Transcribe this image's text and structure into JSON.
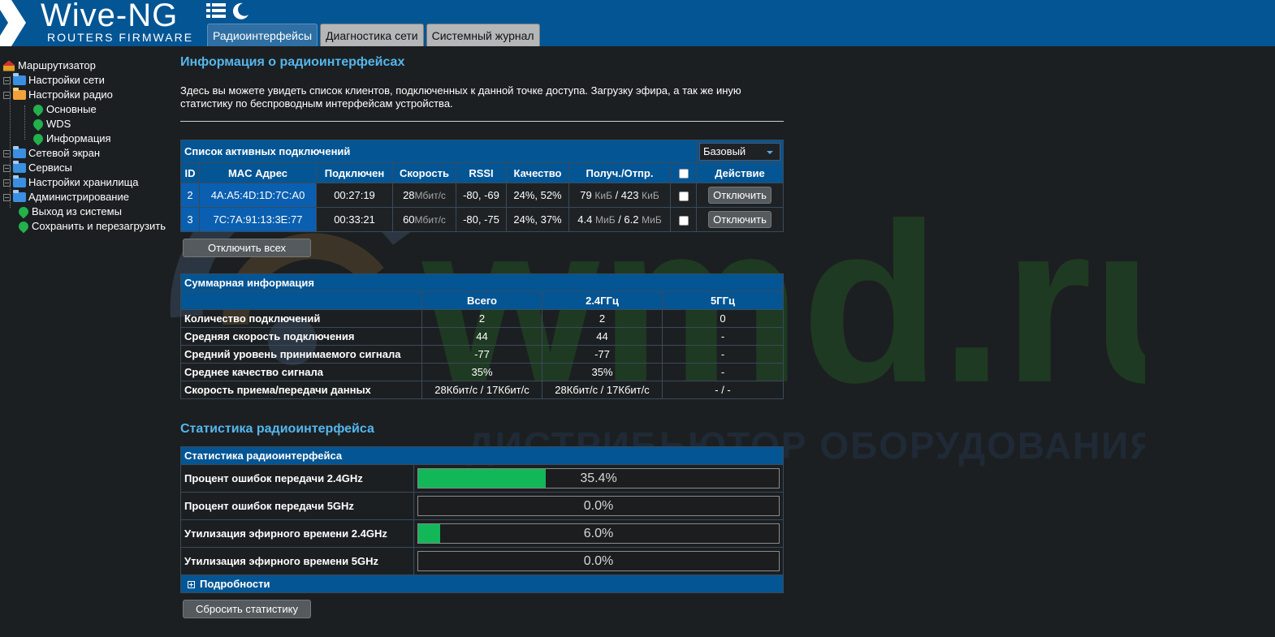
{
  "header": {
    "logo_title": "Wive-NG",
    "logo_subtitle": "ROUTERS FIRMWARE",
    "tabs": [
      {
        "label": "Радиоинтерфейсы",
        "active": true
      },
      {
        "label": "Диагностика сети",
        "active": false
      },
      {
        "label": "Системный журнал",
        "active": false
      }
    ]
  },
  "sidebar": {
    "root": "Маршрутизатор",
    "items": [
      {
        "label": "Настройки сети"
      },
      {
        "label": "Настройки радио"
      },
      {
        "label": "Основные"
      },
      {
        "label": "WDS"
      },
      {
        "label": "Информация"
      },
      {
        "label": "Сетевой экран"
      },
      {
        "label": "Сервисы"
      },
      {
        "label": "Настройки хранилища"
      },
      {
        "label": "Администрирование"
      },
      {
        "label": "Выход из системы"
      },
      {
        "label": "Сохранить и перезагрузить"
      }
    ]
  },
  "main": {
    "title": "Информация о радиоинтерфейсах",
    "description": "Здесь вы можете увидеть список клиентов, подключенных к данной точке доступа. Загрузку эфира, а так же иную статистику по беспроводным интерфейсам устройства."
  },
  "clients": {
    "title": "Список активных подключений",
    "mode_select": "Базовый",
    "columns": [
      "ID",
      "MAC Адрес",
      "Подключен",
      "Скорость",
      "RSSI",
      "Качество",
      "Получ./Отпр.",
      "",
      "Действие"
    ],
    "rows": [
      {
        "id": "2",
        "mac": "4A:A5:4D:1D:7C:A0",
        "connected": "00:27:19",
        "speed": "28",
        "speed_unit": "Мбит/с",
        "rssi": "-80, -69",
        "quality": "24%, 52%",
        "rx": "79",
        "rx_unit": "КиБ",
        "sep": " / ",
        "tx": "423",
        "tx_unit": "КиБ",
        "action": "Отключить"
      },
      {
        "id": "3",
        "mac": "7C:7A:91:13:3E:77",
        "connected": "00:33:21",
        "speed": "60",
        "speed_unit": "Мбит/с",
        "rssi": "-80, -75",
        "quality": "24%, 37%",
        "rx": "4.4",
        "rx_unit": "МиБ",
        "sep": " / ",
        "tx": "6.2",
        "tx_unit": "МиБ",
        "action": "Отключить"
      }
    ],
    "disconnect_all": "Отключить всех"
  },
  "summary": {
    "title": "Суммарная информация",
    "columns": [
      "Всего",
      "2.4ГГц",
      "5ГГц"
    ],
    "rows": [
      {
        "label": "Количество подключений",
        "total": "2",
        "g24": "2",
        "g5": "0"
      },
      {
        "label": "Средняя скорость подключения",
        "total": "44",
        "g24": "44",
        "g5": "-"
      },
      {
        "label": "Средний уровень принимаемого сигнала",
        "total": "-77",
        "g24": "-77",
        "g5": "-"
      },
      {
        "label": "Среднее качество сигнала",
        "total": "35%",
        "g24": "35%",
        "g5": "-"
      },
      {
        "label": "Скорость приема/передачи данных",
        "total": "28Кбит/с / 17Кбит/с",
        "g24": "28Кбит/с / 17Кбит/с",
        "g5": "- / -"
      }
    ]
  },
  "stats": {
    "section_title": "Статистика радиоинтерфейса",
    "table_title": "Статистика радиоинтерфейса",
    "rows": [
      {
        "label": "Процент ошибок передачи 2.4GHz",
        "value": 35.4,
        "text": "35.4%"
      },
      {
        "label": "Процент ошибок передачи 5GHz",
        "value": 0.0,
        "text": "0.0%"
      },
      {
        "label": "Утилизация эфирного времени 2.4GHz",
        "value": 6.0,
        "text": "6.0%"
      },
      {
        "label": "Утилизация эфирного времени 5GHz",
        "value": 0.0,
        "text": "0.0%"
      }
    ],
    "details": "Подробности",
    "reset": "Сбросить статистику"
  },
  "watermark": {
    "brand": "wmd.ru",
    "tagline": "ДИСТРИБЬЮТОР ОБОРУДОВАНИЯ СВЯЗИ"
  },
  "colors": {
    "header_bg": "#045594",
    "accent_title": "#54b7ee",
    "bar_fill": "#12b758"
  }
}
